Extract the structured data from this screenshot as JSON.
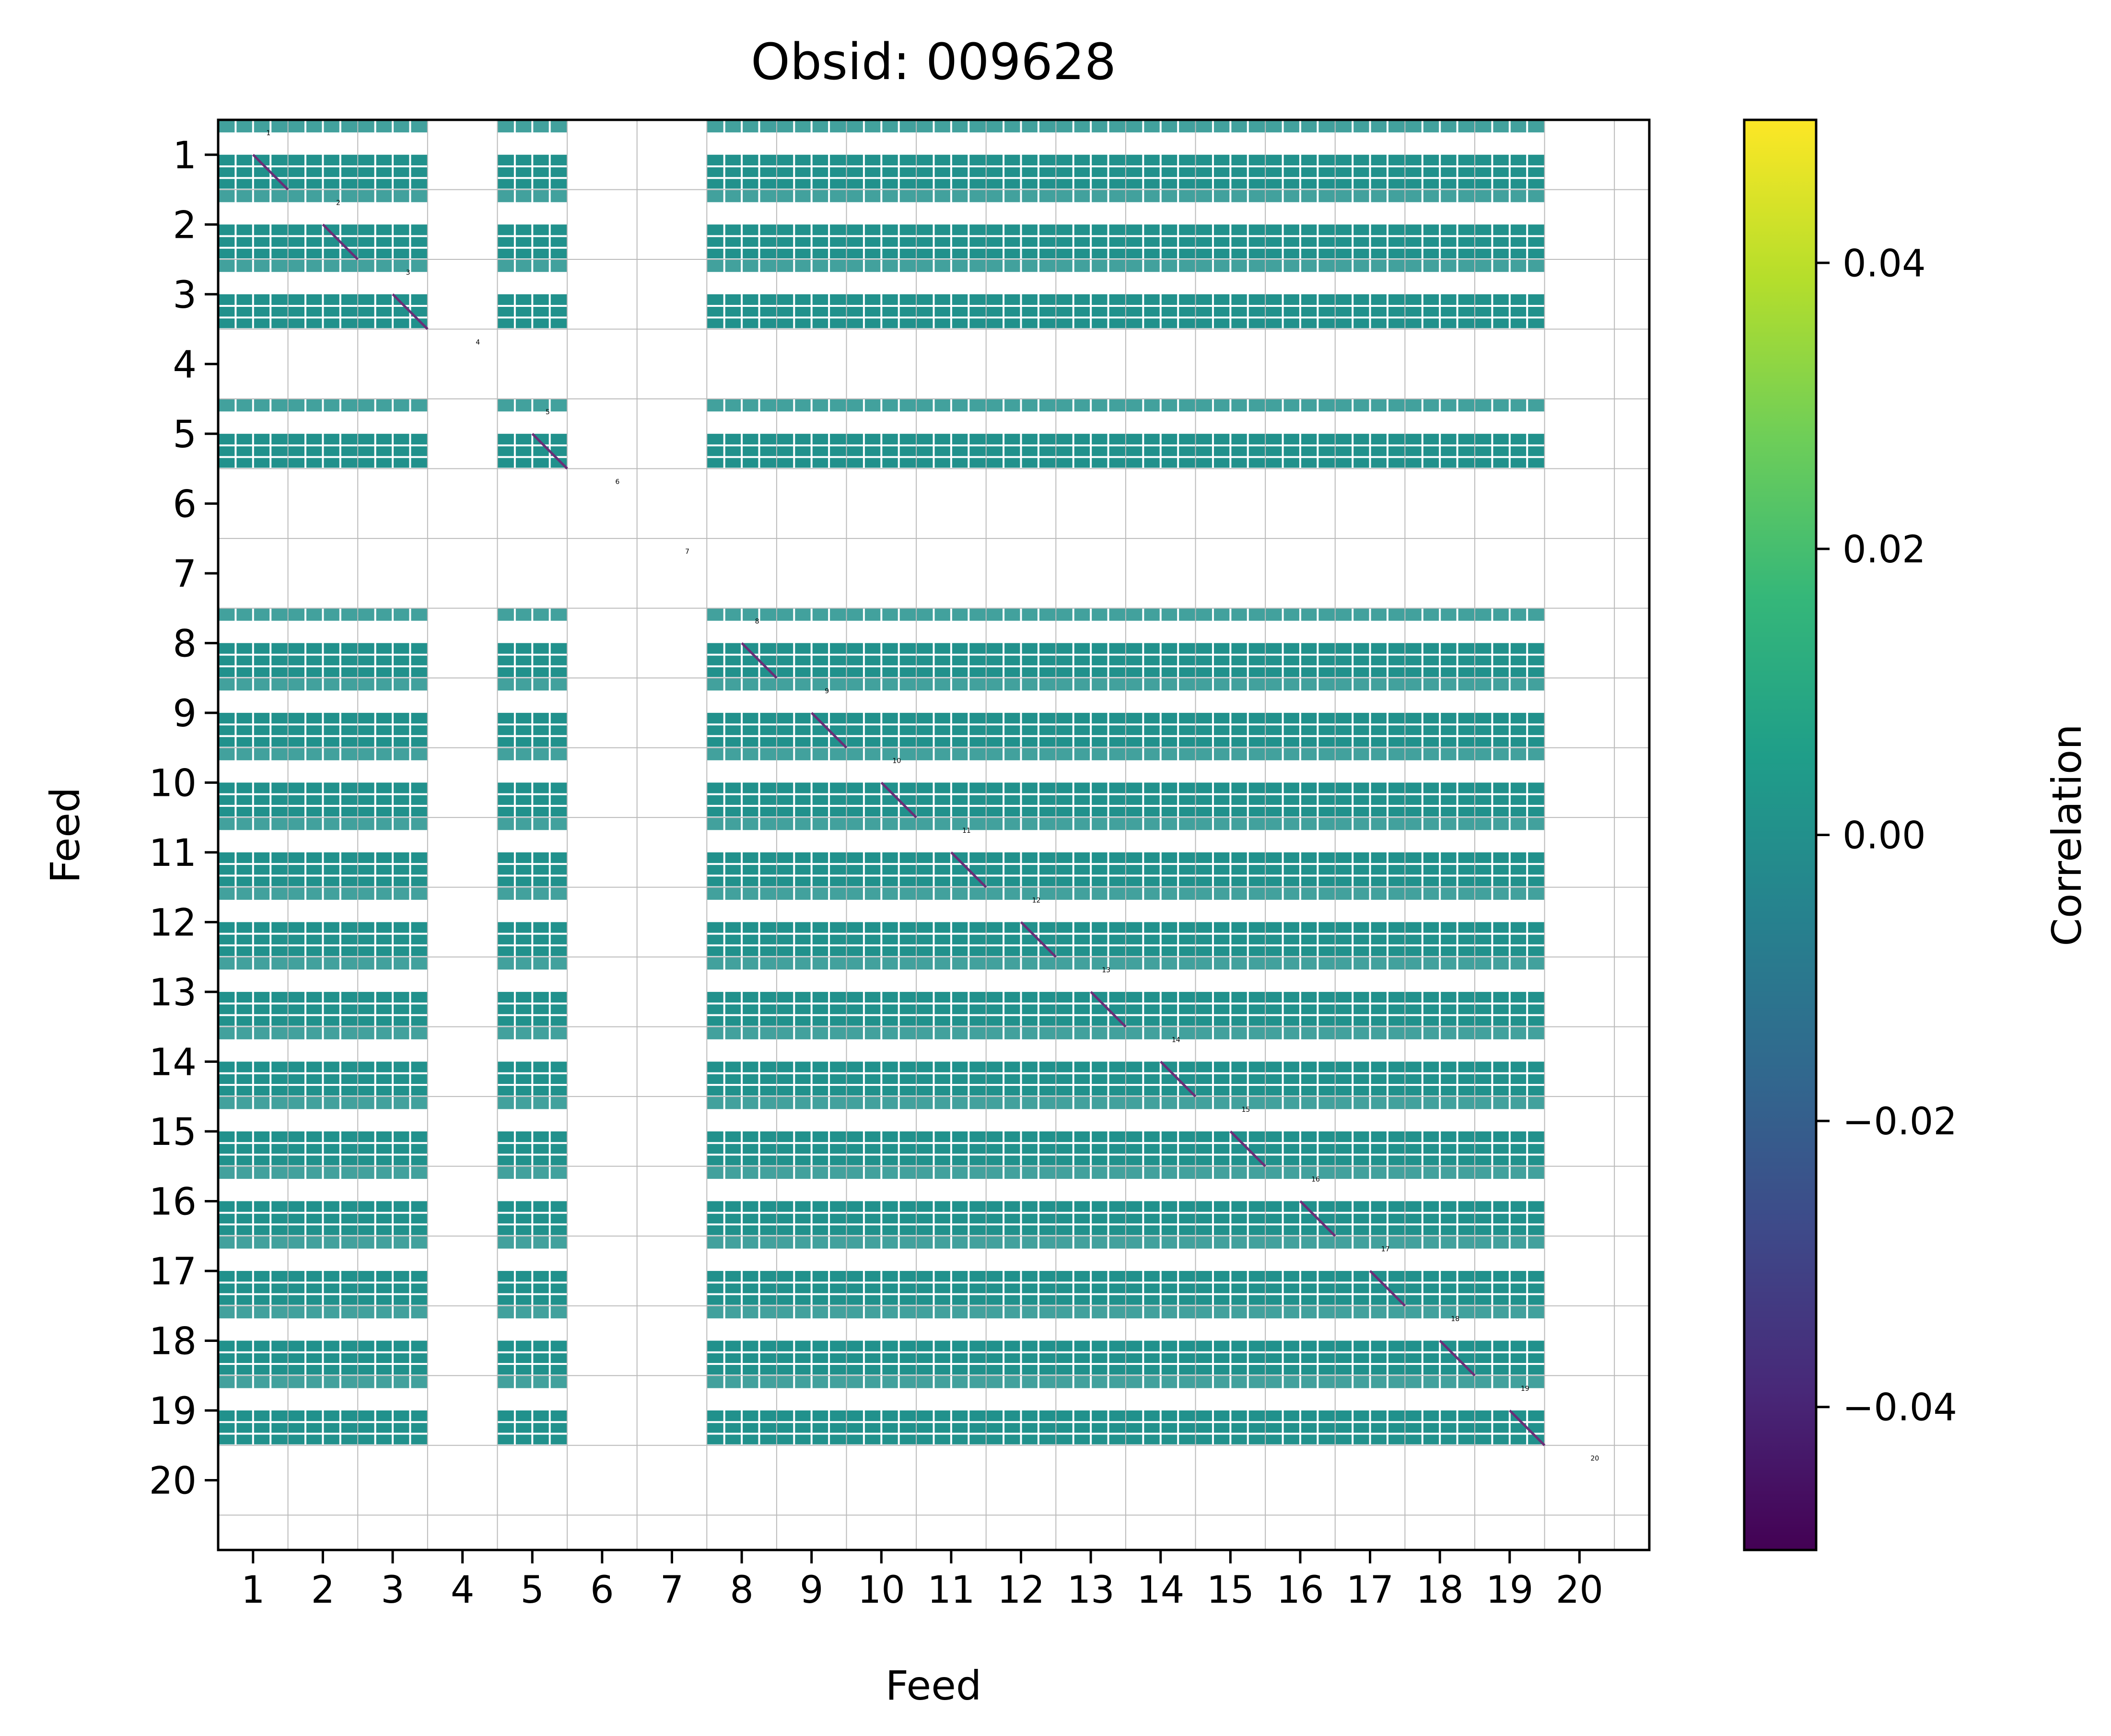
{
  "chart_data": {
    "type": "heatmap",
    "title": "Obsid: 009628",
    "xlabel": "Feed",
    "ylabel": "Feed",
    "feeds": [
      1,
      2,
      3,
      4,
      5,
      6,
      7,
      8,
      9,
      10,
      11,
      12,
      13,
      14,
      15,
      16,
      17,
      18,
      19,
      20
    ],
    "x_tick_labels": [
      "1",
      "2",
      "3",
      "4",
      "5",
      "6",
      "7",
      "8",
      "9",
      "10",
      "11",
      "12",
      "13",
      "14",
      "15",
      "16",
      "17",
      "18",
      "19",
      "20"
    ],
    "y_tick_labels": [
      "1",
      "2",
      "3",
      "4",
      "5",
      "6",
      "7",
      "8",
      "9",
      "10",
      "11",
      "12",
      "13",
      "14",
      "15",
      "16",
      "17",
      "18",
      "19",
      "20"
    ],
    "active_feeds": [
      1,
      2,
      3,
      5,
      8,
      9,
      10,
      11,
      12,
      13,
      14,
      15,
      16,
      17,
      18,
      19
    ],
    "inactive_feeds": [
      4,
      6,
      7,
      20
    ],
    "correlation_value_offdiagonal": 0.0,
    "diagonal_value": -0.05,
    "diagonal_labels": [
      "1",
      "2",
      "3",
      "4",
      "5",
      "6",
      "7",
      "8",
      "9",
      "10",
      "11",
      "12",
      "13",
      "14",
      "15",
      "16",
      "17",
      "18",
      "19",
      "20"
    ],
    "colorbar": {
      "label": "Correlation",
      "colormap": "viridis",
      "range": [
        -0.05,
        0.05
      ],
      "ticks": [
        -0.04,
        -0.02,
        0.0,
        0.02,
        0.04
      ],
      "tick_labels": [
        "−0.04",
        "−0.02",
        "0.00",
        "0.02",
        "0.04"
      ]
    },
    "colors": {
      "zero": "#21918c",
      "diagonal": "#6a2e77",
      "grid": "#bbbbbb",
      "viridis_stops": [
        "#440154",
        "#482878",
        "#3e4989",
        "#31688e",
        "#26828e",
        "#1f9e89",
        "#35b779",
        "#6ece58",
        "#b5de2b",
        "#fde725"
      ]
    }
  }
}
